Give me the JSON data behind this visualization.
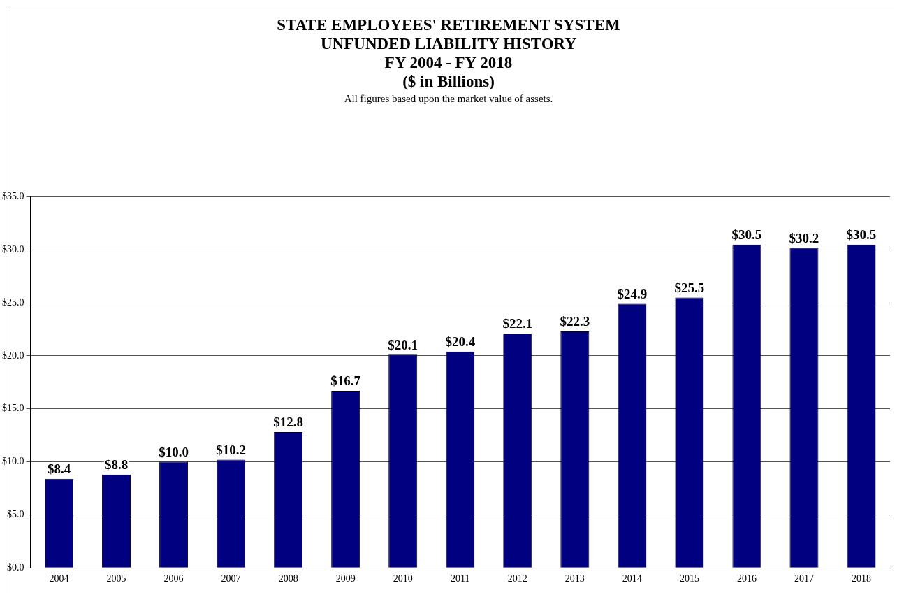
{
  "chart_data": {
    "type": "bar",
    "title": "STATE EMPLOYEES' RETIREMENT SYSTEM\nUNFUNDED LIABILITY HISTORY\nFY 2004 - FY 2018\n($ in Billions)",
    "subtitle": "All figures based upon the market value of assets.",
    "categories": [
      "2004",
      "2005",
      "2006",
      "2007",
      "2008",
      "2009",
      "2010",
      "2011",
      "2012",
      "2013",
      "2014",
      "2015",
      "2016",
      "2017",
      "2018"
    ],
    "values": [
      8.4,
      8.8,
      10.0,
      10.2,
      12.8,
      16.7,
      20.1,
      20.4,
      22.1,
      22.3,
      24.9,
      25.5,
      30.5,
      30.2,
      30.5
    ],
    "value_labels": [
      "$8.4",
      "$8.8",
      "$10.0",
      "$10.2",
      "$12.8",
      "$16.7",
      "$20.1",
      "$20.4",
      "$22.1",
      "$22.3",
      "$24.9",
      "$25.5",
      "$30.5",
      "$30.2",
      "$30.5"
    ],
    "color": "#000080",
    "ylim": [
      0,
      35
    ],
    "yticks": [
      {
        "value": 0,
        "label": "$0.0"
      },
      {
        "value": 5,
        "label": "$5.0"
      },
      {
        "value": 10,
        "label": "$10.0"
      },
      {
        "value": 15,
        "label": "$15.0"
      },
      {
        "value": 20,
        "label": "$20.0"
      },
      {
        "value": 25,
        "label": "$25.0"
      },
      {
        "value": 30,
        "label": "$30.0"
      },
      {
        "value": 35,
        "label": "$35.0"
      }
    ],
    "grid": "y",
    "legend": false
  }
}
